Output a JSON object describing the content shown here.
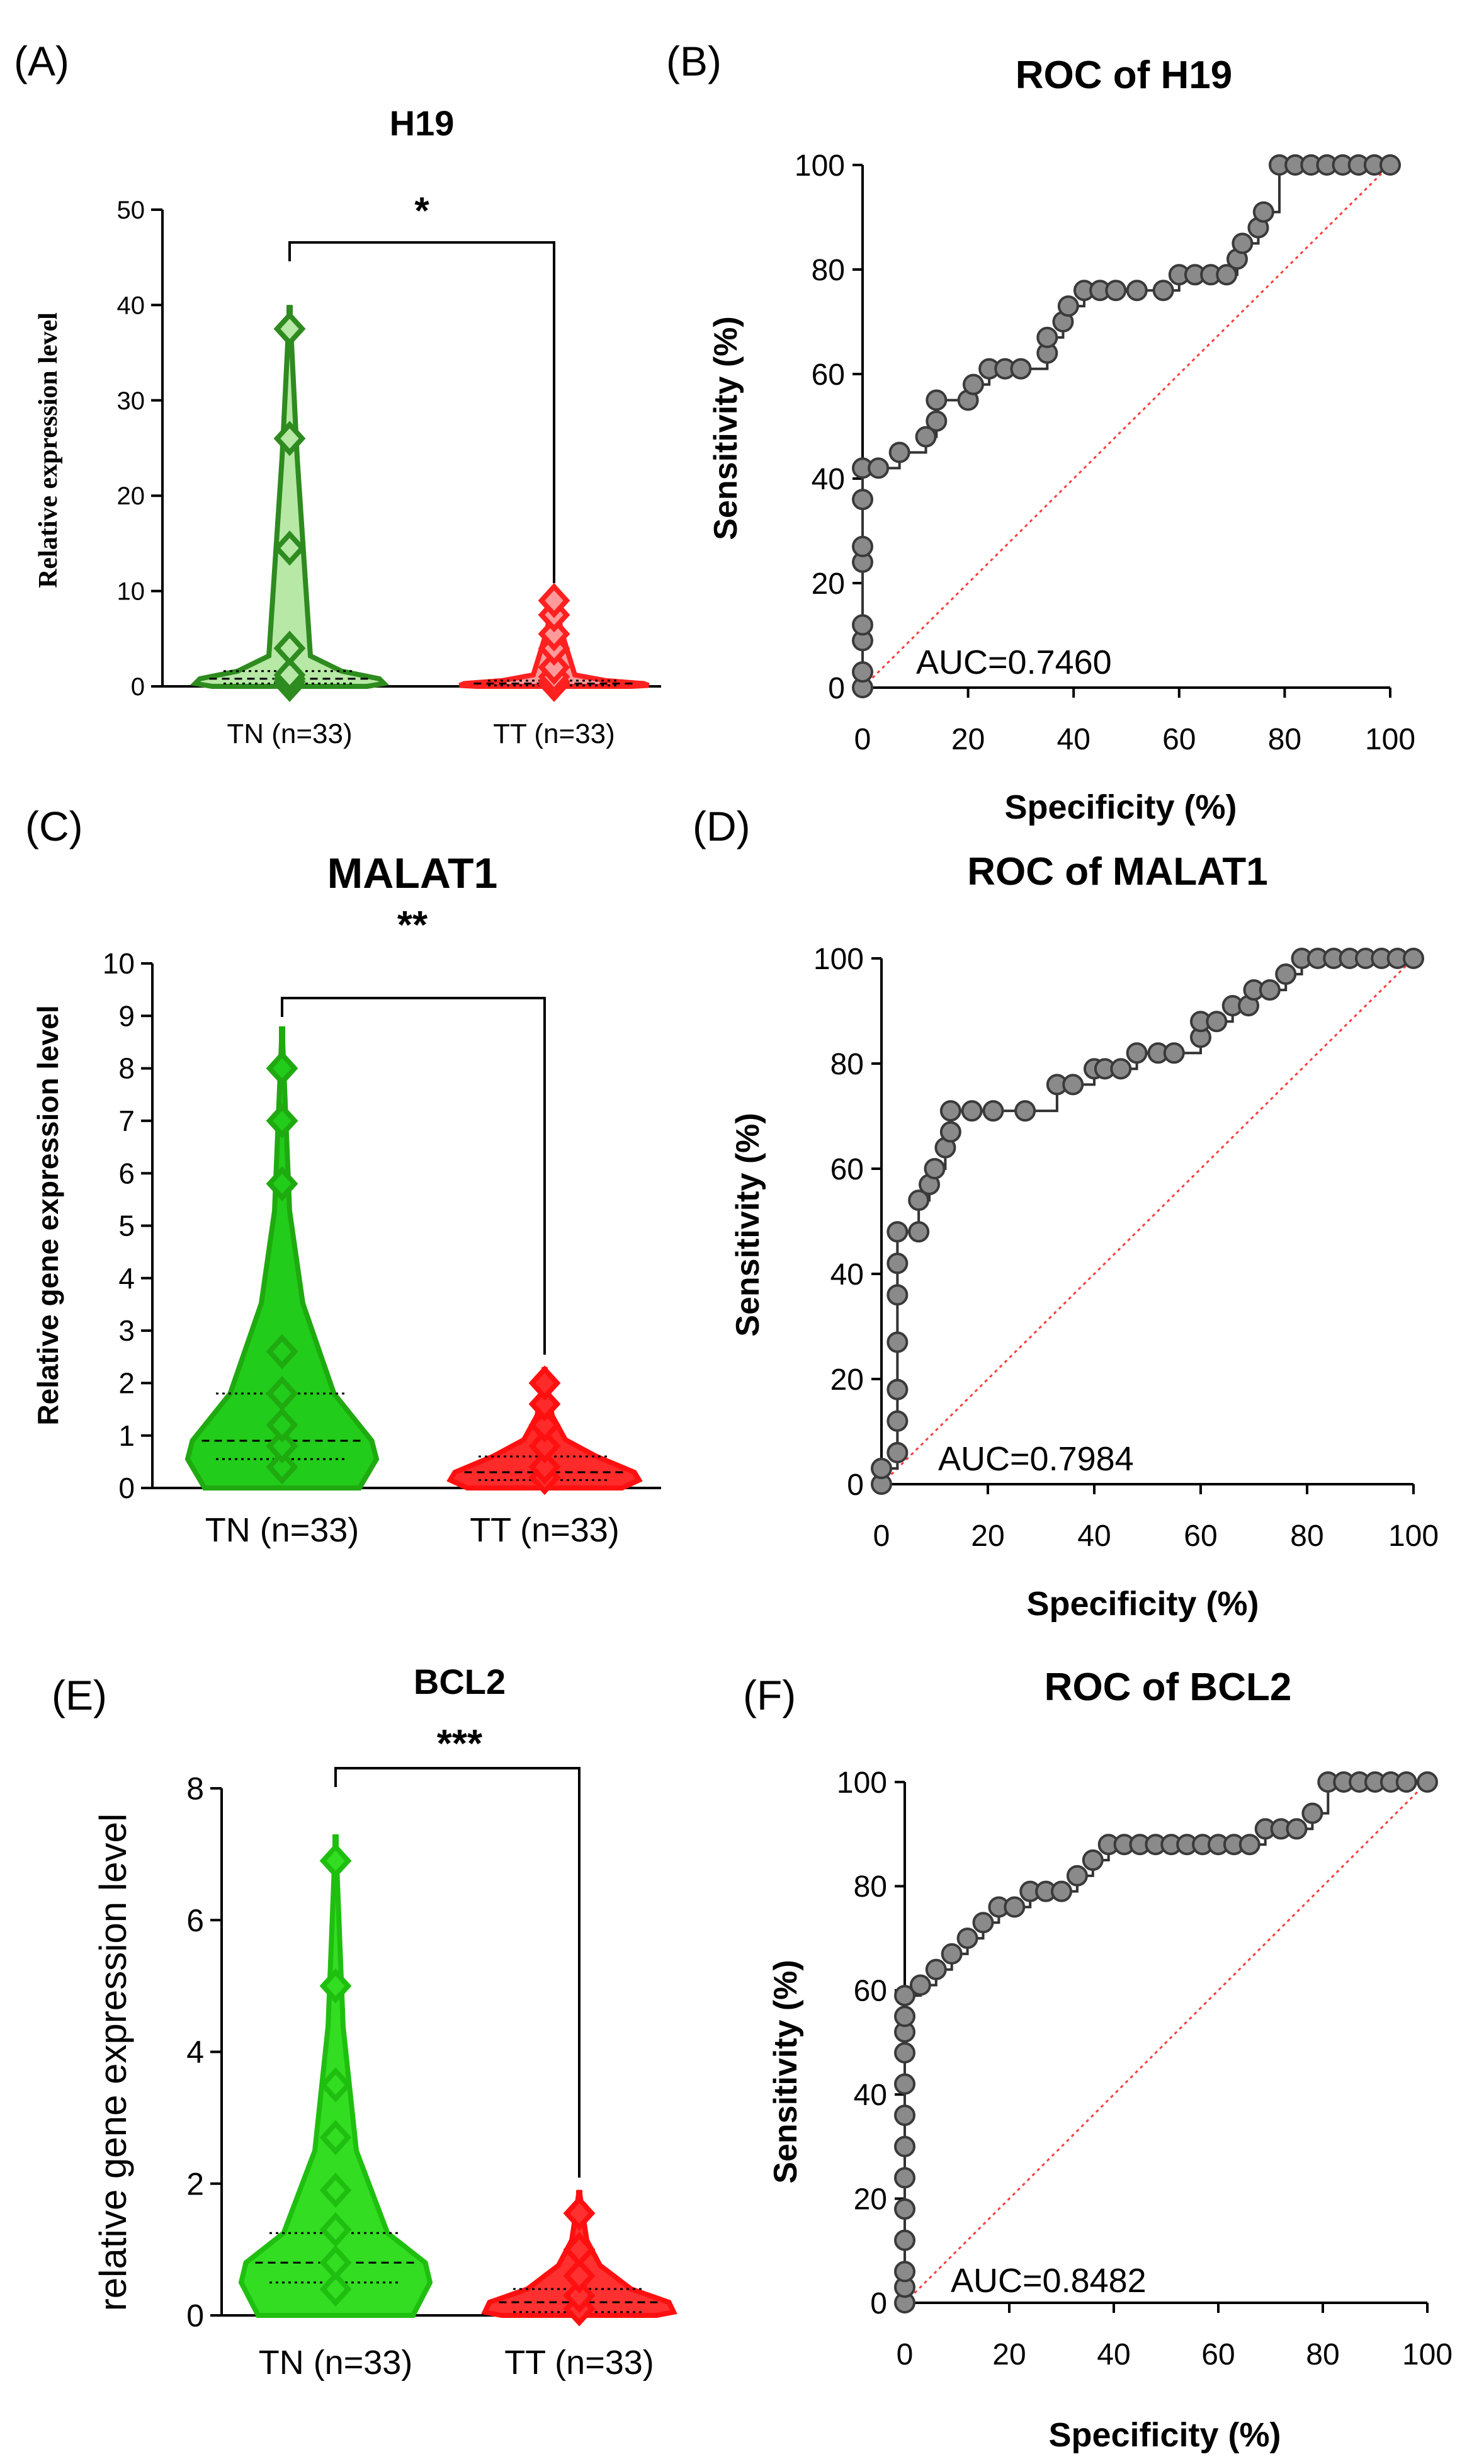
{
  "panels": [
    {
      "kind": "violin",
      "label": "(A)",
      "title": "H19",
      "ylabel": "Relative  expression level",
      "significance": "*",
      "chart_data": {
        "type": "violin",
        "title": "H19",
        "xlabel": "",
        "ylabel": "Relative  expression level",
        "categories": [
          "TN (n=33)",
          "TT (n=33)"
        ],
        "ylim": [
          0,
          50
        ],
        "yticks": [
          0,
          10,
          20,
          30,
          40,
          50
        ],
        "series": [
          {
            "name": "TN (n=33)",
            "color": "#2e8b1f",
            "fill": "#b7e8a6",
            "max": 40,
            "median": 0.8,
            "q1": 0.3,
            "q3": 1.6,
            "points": [
              0.2,
              0.5,
              0.8,
              1.2,
              4,
              14.5,
              26,
              37.5
            ]
          },
          {
            "name": "TT (n=33)",
            "color": "#ff2020",
            "fill": "#ff9a9a",
            "max": 9.5,
            "median": 0.3,
            "q1": 0.1,
            "q3": 0.6,
            "points": [
              0.2,
              0.5,
              1,
              2,
              4,
              5.5,
              7.5,
              9
            ]
          }
        ]
      }
    },
    {
      "kind": "roc",
      "label": "(B)",
      "title": "ROC of H19",
      "auc": "AUC=0.7460",
      "chart_data": {
        "type": "line",
        "title": "ROC of H19",
        "xlabel": "Specificity (%)",
        "ylabel": "Sensitivity (%)",
        "xlim": [
          0,
          100
        ],
        "ylim": [
          0,
          100
        ],
        "xticks": [
          0,
          20,
          40,
          60,
          80,
          100
        ],
        "yticks": [
          0,
          20,
          40,
          60,
          80,
          100
        ],
        "reference_line": [
          [
            0,
            0
          ],
          [
            100,
            100
          ]
        ],
        "x": [
          0,
          0,
          0,
          0,
          0,
          0,
          0,
          0,
          3,
          7,
          12,
          14,
          14,
          20,
          21,
          24,
          27,
          30,
          35,
          35,
          38,
          39,
          42,
          45,
          48,
          52,
          57,
          60,
          63,
          66,
          69,
          71,
          72,
          75,
          76,
          79,
          82,
          85,
          88,
          91,
          94,
          97,
          100
        ],
        "y": [
          0,
          3,
          9,
          12,
          24,
          27,
          36,
          42,
          42,
          45,
          48,
          51,
          55,
          55,
          58,
          61,
          61,
          61,
          64,
          67,
          70,
          73,
          76,
          76,
          76,
          76,
          76,
          79,
          79,
          79,
          79,
          82,
          85,
          88,
          91,
          100,
          100,
          100,
          100,
          100,
          100,
          100,
          100
        ]
      }
    },
    {
      "kind": "violin",
      "label": "(C)",
      "title": "MALAT1",
      "ylabel": "Relative gene expression level",
      "significance": "**",
      "chart_data": {
        "type": "violin",
        "title": "MALAT1",
        "xlabel": "",
        "ylabel": "Relative gene expression level",
        "categories": [
          "TN (n=33)",
          "TT (n=33)"
        ],
        "ylim": [
          0,
          10
        ],
        "yticks": [
          0,
          1,
          2,
          3,
          4,
          5,
          6,
          7,
          8,
          9,
          10
        ],
        "series": [
          {
            "name": "TN (n=33)",
            "color": "#1faa10",
            "fill": "#22cc1a",
            "max": 8.8,
            "median": 0.9,
            "q1": 0.55,
            "q3": 1.8,
            "points": [
              0.4,
              0.8,
              1.2,
              1.8,
              2.6,
              5.8,
              7,
              8
            ]
          },
          {
            "name": "TT (n=33)",
            "color": "#ff1010",
            "fill": "#ff2a2a",
            "max": 2.3,
            "median": 0.3,
            "q1": 0.15,
            "q3": 0.6,
            "points": [
              0.2,
              0.4,
              0.8,
              1.2,
              1.6,
              2
            ]
          }
        ]
      }
    },
    {
      "kind": "roc",
      "label": "(D)",
      "title": "ROC of MALAT1",
      "auc": "AUC=0.7984",
      "chart_data": {
        "type": "line",
        "title": "ROC of MALAT1",
        "xlabel": "Specificity (%)",
        "ylabel": "Sensitivity (%)",
        "xlim": [
          0,
          100
        ],
        "ylim": [
          0,
          100
        ],
        "xticks": [
          0,
          20,
          40,
          60,
          80,
          100
        ],
        "yticks": [
          0,
          20,
          40,
          60,
          80,
          100
        ],
        "reference_line": [
          [
            0,
            0
          ],
          [
            100,
            100
          ]
        ],
        "x": [
          0,
          0,
          3,
          3,
          3,
          3,
          3,
          3,
          3,
          7,
          7,
          9,
          10,
          12,
          13,
          13,
          17,
          21,
          27,
          33,
          36,
          40,
          42,
          45,
          48,
          52,
          55,
          60,
          60,
          63,
          66,
          69,
          70,
          73,
          76,
          79,
          82,
          85,
          88,
          91,
          94,
          97,
          100
        ],
        "y": [
          0,
          3,
          6,
          12,
          18,
          27,
          36,
          42,
          48,
          48,
          54,
          57,
          60,
          64,
          67,
          71,
          71,
          71,
          71,
          76,
          76,
          79,
          79,
          79,
          82,
          82,
          82,
          85,
          88,
          88,
          91,
          91,
          94,
          94,
          97,
          100,
          100,
          100,
          100,
          100,
          100,
          100,
          100
        ]
      }
    },
    {
      "kind": "violin",
      "label": "(E)",
      "title": "BCL2",
      "ylabel": "relative gene expression level",
      "significance": "***",
      "chart_data": {
        "type": "violin",
        "title": "BCL2",
        "xlabel": "",
        "ylabel": "relative gene expression level",
        "categories": [
          "TN (n=33)",
          "TT (n=33)"
        ],
        "ylim": [
          0,
          8
        ],
        "yticks": [
          0,
          2,
          4,
          6,
          8
        ],
        "series": [
          {
            "name": "TN (n=33)",
            "color": "#1fbf10",
            "fill": "#33dd22",
            "max": 7.3,
            "median": 0.8,
            "q1": 0.5,
            "q3": 1.25,
            "points": [
              0.4,
              0.8,
              1.3,
              1.9,
              2.7,
              3.5,
              5,
              6.9
            ]
          },
          {
            "name": "TT (n=33)",
            "color": "#ff1010",
            "fill": "#ff3030",
            "max": 1.9,
            "median": 0.2,
            "q1": 0.05,
            "q3": 0.4,
            "points": [
              0.1,
              0.3,
              0.6,
              1,
              1.55
            ]
          }
        ]
      }
    },
    {
      "kind": "roc",
      "label": "(F)",
      "title": "ROC of BCL2",
      "auc": "AUC=0.8482",
      "chart_data": {
        "type": "line",
        "title": "ROC of BCL2",
        "xlabel": "Specificity (%)",
        "ylabel": "Sensitivity (%)",
        "xlim": [
          0,
          100
        ],
        "ylim": [
          0,
          100
        ],
        "xticks": [
          0,
          20,
          40,
          60,
          80,
          100
        ],
        "yticks": [
          0,
          20,
          40,
          60,
          80,
          100
        ],
        "reference_line": [
          [
            0,
            0
          ],
          [
            100,
            100
          ]
        ],
        "x": [
          0,
          0,
          0,
          0,
          0,
          0,
          0,
          0,
          0,
          0,
          0,
          0,
          0,
          3,
          6,
          9,
          12,
          15,
          18,
          21,
          24,
          27,
          30,
          33,
          36,
          39,
          42,
          45,
          48,
          51,
          54,
          57,
          60,
          63,
          66,
          69,
          72,
          75,
          78,
          81,
          84,
          87,
          90,
          93,
          96,
          100
        ],
        "y": [
          0,
          3,
          6,
          12,
          18,
          24,
          30,
          36,
          42,
          48,
          52,
          55,
          59,
          61,
          64,
          67,
          70,
          73,
          76,
          76,
          79,
          79,
          79,
          82,
          85,
          88,
          88,
          88,
          88,
          88,
          88,
          88,
          88,
          88,
          88,
          91,
          91,
          91,
          94,
          100,
          100,
          100,
          100,
          100,
          100,
          100
        ]
      }
    }
  ]
}
